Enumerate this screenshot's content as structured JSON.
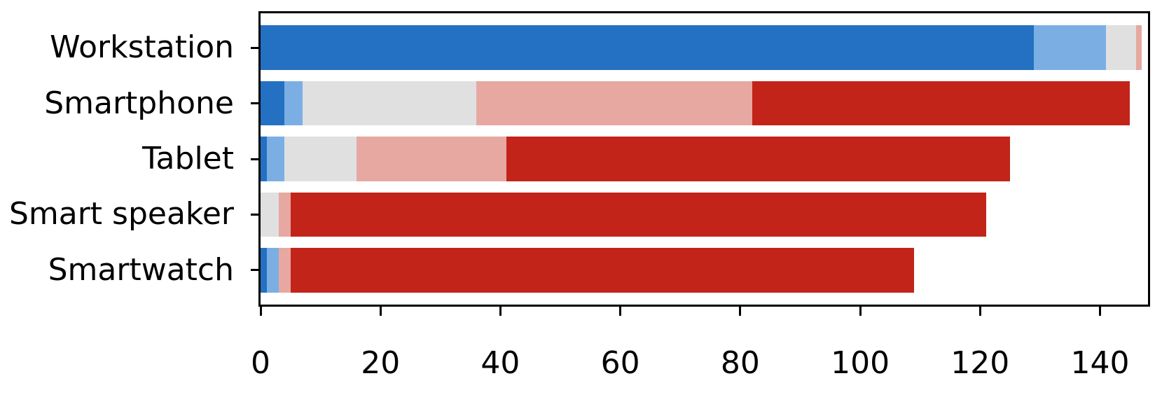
{
  "chart_data": {
    "type": "bar",
    "orientation": "horizontal",
    "stacked": true,
    "title": "",
    "xlabel": "",
    "ylabel": "",
    "categories": [
      "Workstation",
      "Smartphone",
      "Tablet",
      "Smart speaker",
      "Smartwatch"
    ],
    "series": [
      {
        "name": "strong-blue",
        "color": "#2470c2",
        "values": [
          129,
          4,
          1,
          0,
          1
        ]
      },
      {
        "name": "light-blue",
        "color": "#7bafe4",
        "values": [
          12,
          3,
          3,
          0,
          2
        ]
      },
      {
        "name": "neutral-gray",
        "color": "#e0e0e1",
        "values": [
          5,
          29,
          12,
          3,
          0
        ]
      },
      {
        "name": "light-red",
        "color": "#e6a8a1",
        "values": [
          1,
          46,
          25,
          2,
          2
        ]
      },
      {
        "name": "strong-red",
        "color": "#c2241a",
        "values": [
          0,
          63,
          84,
          116,
          104
        ]
      }
    ],
    "totals": [
      147,
      145,
      125,
      121,
      109
    ],
    "x_ticks": [
      0,
      20,
      40,
      60,
      80,
      100,
      120,
      140
    ],
    "xlim": [
      0,
      148
    ],
    "grid": false,
    "legend": null,
    "axis_color": "#000000",
    "background_color": "#ffffff"
  }
}
